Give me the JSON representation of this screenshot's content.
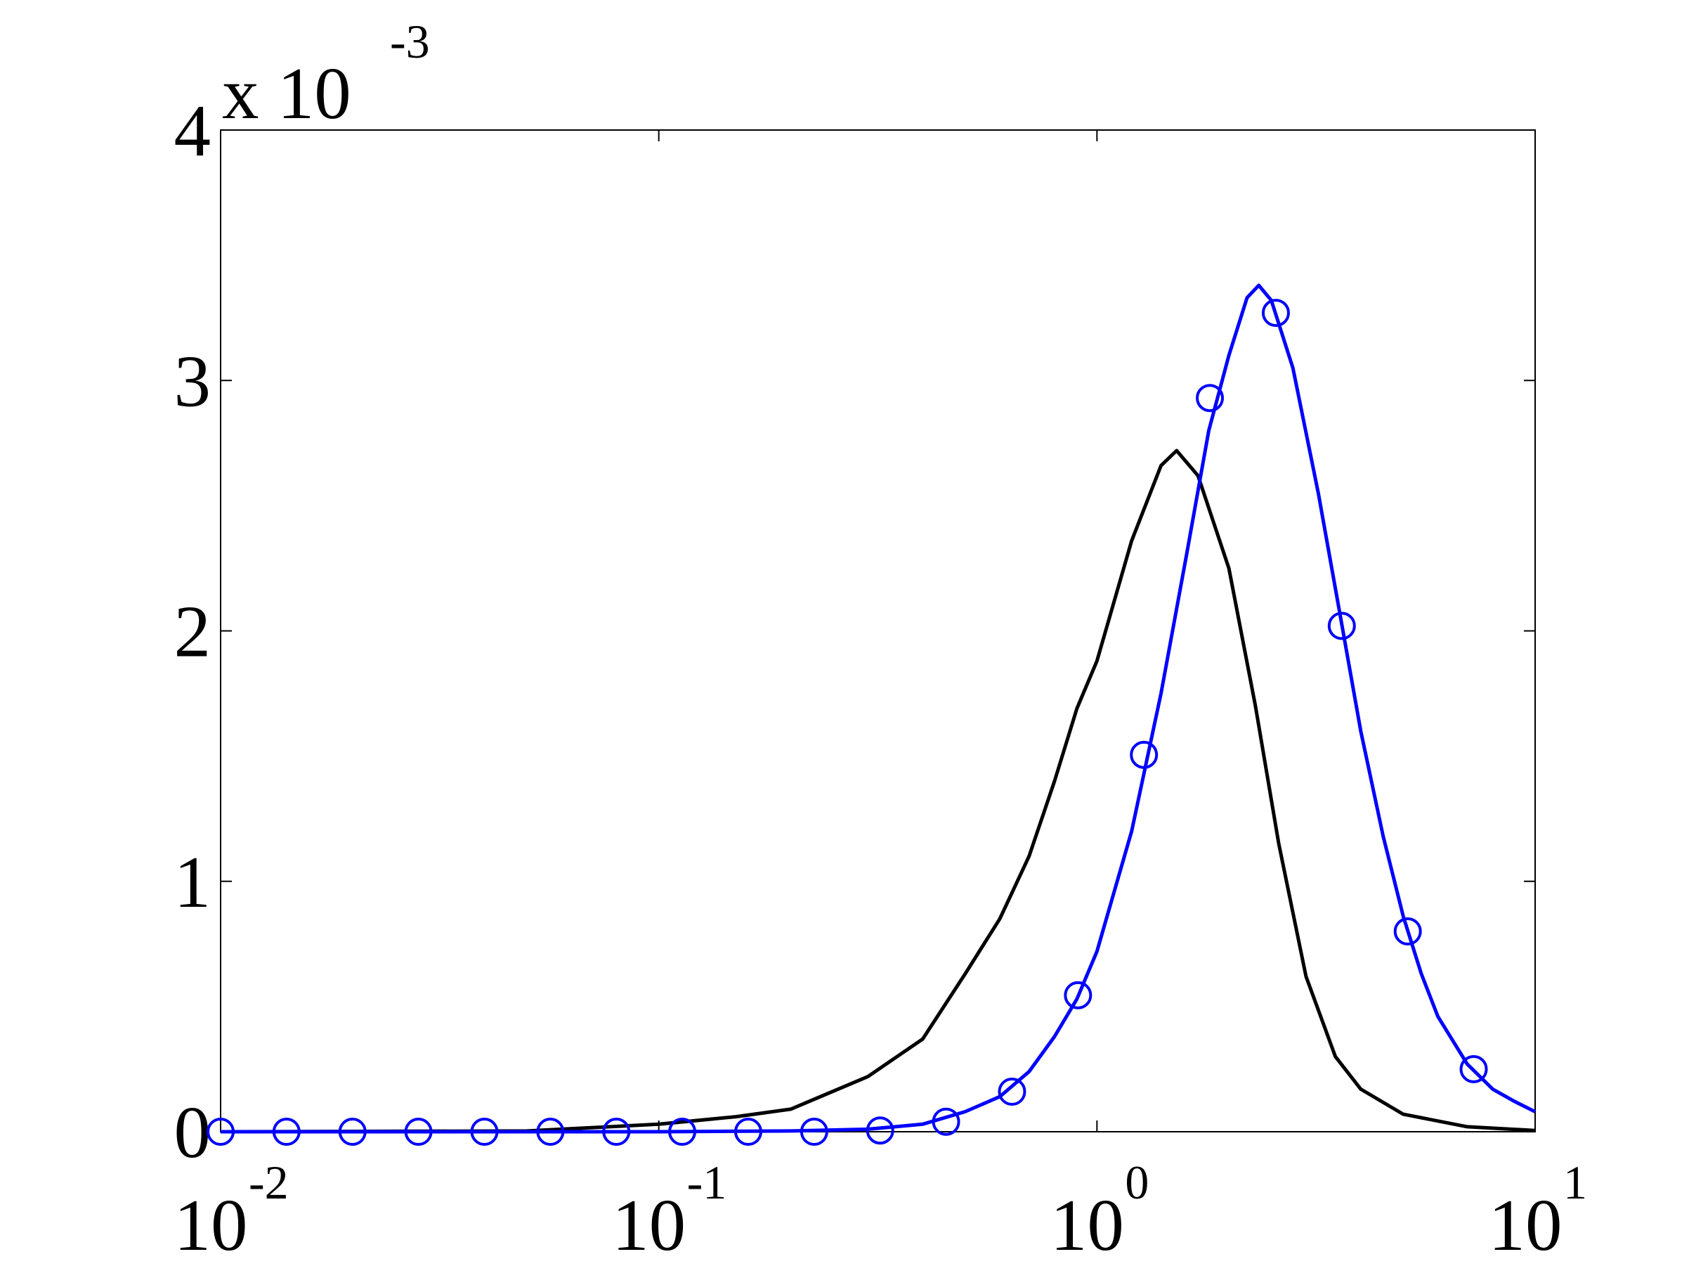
{
  "chart_data": {
    "type": "line",
    "x_scale": "log",
    "xlim": [
      0.01,
      10
    ],
    "xticks": [
      {
        "value": 0.01,
        "label": "10",
        "exponent": "-2"
      },
      {
        "value": 0.1,
        "label": "10",
        "exponent": "-1"
      },
      {
        "value": 1,
        "label": "10",
        "exponent": "0"
      },
      {
        "value": 10,
        "label": "10",
        "exponent": "1"
      }
    ],
    "ylim": [
      0,
      4
    ],
    "yticks": [
      0,
      1,
      2,
      3,
      4
    ],
    "y_multiplier": {
      "label": "x 10",
      "exponent": "-3"
    },
    "grid": false,
    "series": [
      {
        "color": "#000000",
        "marker": "none",
        "line": true,
        "x": [
          0.01,
          0.05,
          0.1,
          0.15,
          0.2,
          0.3,
          0.4,
          0.5,
          0.6,
          0.7,
          0.8,
          0.9,
          1.0,
          1.2,
          1.4,
          1.52,
          1.7,
          2.0,
          2.3,
          2.6,
          3.0,
          3.5,
          4.0,
          5.0,
          7.0,
          10
        ],
        "values": [
          0,
          0.003,
          0.03,
          0.06,
          0.09,
          0.22,
          0.37,
          0.63,
          0.85,
          1.1,
          1.4,
          1.69,
          1.88,
          2.36,
          2.66,
          2.72,
          2.62,
          2.25,
          1.7,
          1.15,
          0.62,
          0.3,
          0.17,
          0.07,
          0.02,
          0.005
        ]
      },
      {
        "color": "#0000ff",
        "marker": "none",
        "line": true,
        "x": [
          0.01,
          0.1,
          0.2,
          0.3,
          0.4,
          0.5,
          0.6,
          0.7,
          0.8,
          0.9,
          1.0,
          1.2,
          1.4,
          1.6,
          1.8,
          2.0,
          2.2,
          2.34,
          2.5,
          2.8,
          3.2,
          3.6,
          4.0,
          4.5,
          5.0,
          5.5,
          6.0,
          7.0,
          8.0,
          9.0,
          10
        ],
        "values": [
          0,
          0,
          0.003,
          0.01,
          0.03,
          0.08,
          0.14,
          0.24,
          0.38,
          0.53,
          0.72,
          1.2,
          1.75,
          2.3,
          2.8,
          3.1,
          3.33,
          3.38,
          3.32,
          3.05,
          2.55,
          2.05,
          1.6,
          1.18,
          0.86,
          0.63,
          0.46,
          0.27,
          0.17,
          0.12,
          0.08
        ]
      },
      {
        "color": "#0000ff",
        "marker": "circle",
        "line": false,
        "x": [
          0.01,
          0.01414,
          0.02,
          0.02828,
          0.04,
          0.05657,
          0.08,
          0.1131,
          0.16,
          0.2263,
          0.32,
          0.4525,
          0.64,
          0.9051,
          1.28,
          1.81,
          2.56,
          3.62,
          5.12,
          7.24
        ],
        "values": [
          0,
          0,
          0,
          0,
          0,
          0,
          0,
          0,
          0,
          0,
          0.005,
          0.04,
          0.16,
          0.545,
          1.505,
          2.93,
          3.27,
          2.02,
          0.8,
          0.25
        ]
      }
    ]
  }
}
